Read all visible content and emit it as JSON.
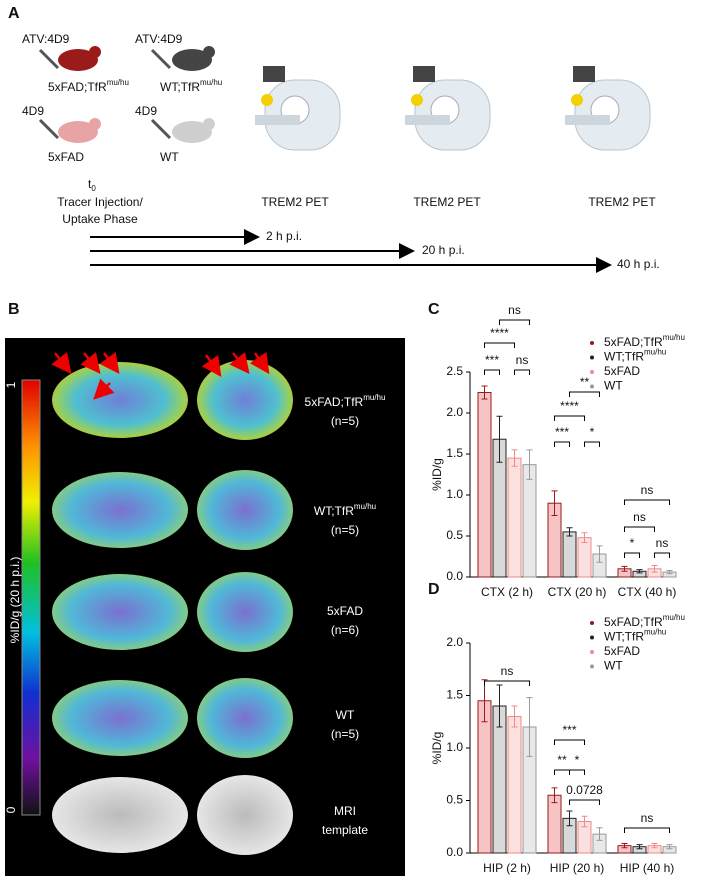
{
  "panel_a": {
    "label": "A",
    "groups": [
      {
        "tracer": "ATV:4D9",
        "name": "5xFAD;TfR",
        "name_superscript": "mu/hu"
      },
      {
        "tracer": "ATV:4D9",
        "name": "WT;TfR",
        "name_superscript": "mu/hu"
      },
      {
        "tracer": "4D9",
        "name": "5xFAD"
      },
      {
        "tracer": "4D9",
        "name": "WT"
      }
    ],
    "time_label": "t",
    "time_subscript": "0",
    "phase": [
      "Tracer Injection/",
      "Uptake Phase"
    ],
    "pet_labels": [
      "TREM2 PET",
      "TREM2 PET",
      "TREM2 PET"
    ],
    "timepoints": [
      "2 h p.i.",
      "20 h p.i.",
      "40 h p.i."
    ]
  },
  "panel_b": {
    "label": "B",
    "colorbar": {
      "max_label": "1",
      "min_label": "0",
      "title": "%ID/g (20 h p.i.)"
    },
    "rows": [
      {
        "name": "5xFAD;TfR",
        "name_superscript": "mu/hu",
        "n": "(n=5)"
      },
      {
        "name": "WT;TfR",
        "name_superscript": "mu/hu",
        "n": "(n=5)"
      },
      {
        "name": "5xFAD",
        "n": "(n=6)"
      },
      {
        "name": "WT",
        "n": "(n=5)"
      },
      {
        "name": "MRI",
        "n": "template"
      }
    ]
  },
  "chart_data": [
    {
      "type": "bar",
      "label": "C",
      "ylabel": "%ID/g",
      "categories": [
        "CTX (2 h)",
        "CTX (20 h)",
        "CTX (40 h)"
      ],
      "ylim": [
        0,
        2.5
      ],
      "yticks": [
        {
          "value": 0,
          "label": "0.0"
        },
        0.5,
        {
          "value": 1,
          "label": "1.0"
        },
        1.5,
        {
          "value": 2,
          "label": "2.0"
        },
        2.5
      ],
      "series": [
        {
          "name": "5xFAD;TfR",
          "name_superscript": "mu/hu",
          "color": "#9b1b1b",
          "fill": "#f6c4c4",
          "values": [
            2.25,
            0.9,
            0.1
          ],
          "errors": [
            0.08,
            0.15,
            0.03
          ]
        },
        {
          "name": "WT;TfR",
          "name_superscript": "mu/hu",
          "color": "#222222",
          "fill": "#d9d9d9",
          "values": [
            1.68,
            0.55,
            0.07
          ],
          "errors": [
            0.28,
            0.05,
            0.02
          ]
        },
        {
          "name": "5xFAD",
          "color": "#f08a8a",
          "fill": "#fbe0e0",
          "values": [
            1.45,
            0.48,
            0.1
          ],
          "errors": [
            0.1,
            0.06,
            0.04
          ]
        },
        {
          "name": "WT",
          "color": "#999999",
          "fill": "#e8e8e8",
          "values": [
            1.37,
            0.28,
            0.06
          ],
          "errors": [
            0.18,
            0.1,
            0.02
          ]
        }
      ],
      "annotations": [
        "ns",
        "****",
        "***",
        "ns",
        "**",
        "****",
        "***",
        "*",
        "ns",
        "ns",
        "*",
        "ns"
      ]
    },
    {
      "type": "bar",
      "label": "D",
      "ylabel": "%ID/g",
      "categories": [
        "HIP (2 h)",
        "HIP (20 h)",
        "HIP (40 h)"
      ],
      "ylim": [
        0,
        2
      ],
      "yticks": [
        {
          "value": 0,
          "label": "0.0"
        },
        0.5,
        {
          "value": 1,
          "label": "1.0"
        },
        1.5,
        {
          "value": 2,
          "label": "2.0"
        }
      ],
      "series": [
        {
          "name": "5xFAD;TfR",
          "name_superscript": "mu/hu",
          "color": "#9b1b1b",
          "fill": "#f6c4c4",
          "values": [
            1.45,
            0.55,
            0.07
          ],
          "errors": [
            0.2,
            0.07,
            0.02
          ]
        },
        {
          "name": "WT;TfR",
          "name_superscript": "mu/hu",
          "color": "#222222",
          "fill": "#d9d9d9",
          "values": [
            1.4,
            0.33,
            0.06
          ],
          "errors": [
            0.2,
            0.07,
            0.02
          ]
        },
        {
          "name": "5xFAD",
          "color": "#f08a8a",
          "fill": "#fbe0e0",
          "values": [
            1.3,
            0.3,
            0.07
          ],
          "errors": [
            0.1,
            0.05,
            0.02
          ]
        },
        {
          "name": "WT",
          "color": "#999999",
          "fill": "#e8e8e8",
          "values": [
            1.2,
            0.18,
            0.06
          ],
          "errors": [
            0.28,
            0.06,
            0.02
          ]
        }
      ],
      "annotations": [
        "ns",
        "***",
        "**",
        "*",
        "0.0728",
        "ns"
      ]
    }
  ]
}
